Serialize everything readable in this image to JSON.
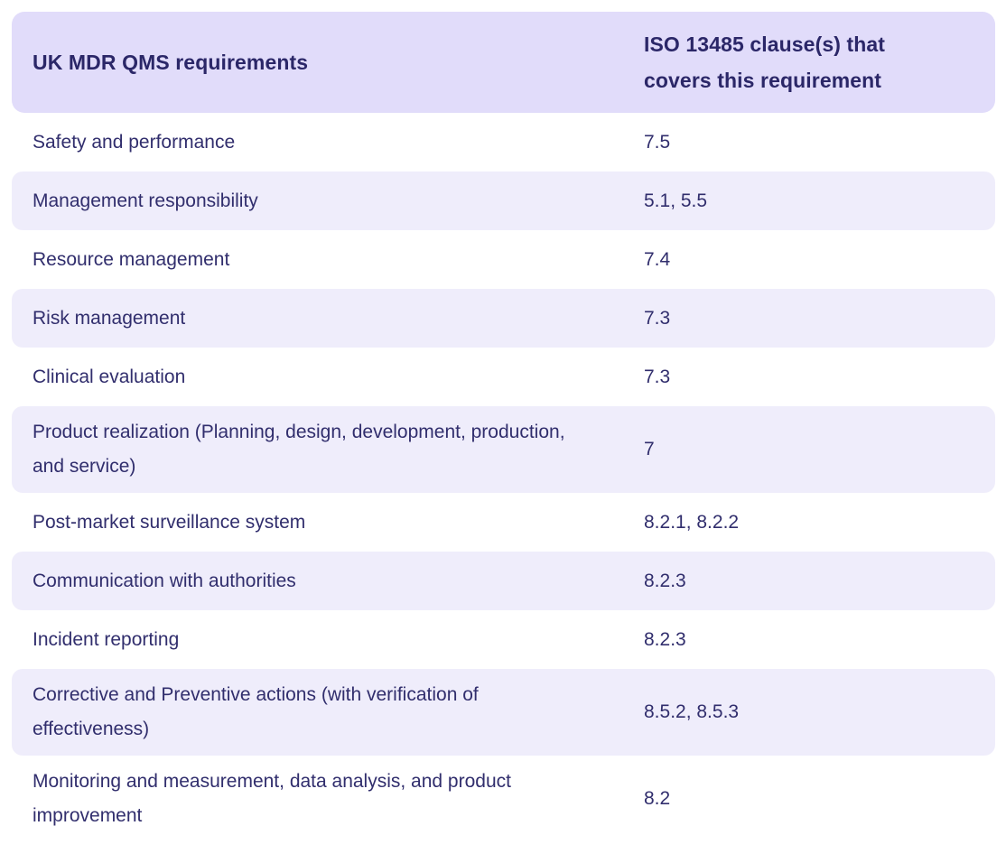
{
  "table": {
    "header": {
      "col1": "UK MDR QMS requirements",
      "col2": "ISO 13485 clause(s) that covers this requirement"
    },
    "rows": [
      {
        "requirement": "Safety and performance",
        "clauses": "7.5"
      },
      {
        "requirement": "Management responsibility",
        "clauses": "5.1, 5.5"
      },
      {
        "requirement": "Resource management",
        "clauses": "7.4"
      },
      {
        "requirement": "Risk management",
        "clauses": "7.3"
      },
      {
        "requirement": "Clinical evaluation",
        "clauses": "7.3"
      },
      {
        "requirement": "Product realization (Planning, design, development, production, and service)",
        "clauses": "7"
      },
      {
        "requirement": "Post-market surveillance system",
        "clauses": "8.2.1, 8.2.2"
      },
      {
        "requirement": "Communication with authorities",
        "clauses": "8.2.3"
      },
      {
        "requirement": "Incident reporting",
        "clauses": "8.2.3"
      },
      {
        "requirement": "Corrective and Preventive actions (with verification of effectiveness)",
        "clauses": "8.5.2, 8.5.3"
      },
      {
        "requirement": "Monitoring and measurement, data analysis, and product improvement",
        "clauses": "8.2"
      }
    ],
    "colors": {
      "header_bg": "#e1dcfa",
      "row_shaded_bg": "#efedfb",
      "header_text": "#2b2768",
      "body_text": "#312e6d"
    }
  }
}
